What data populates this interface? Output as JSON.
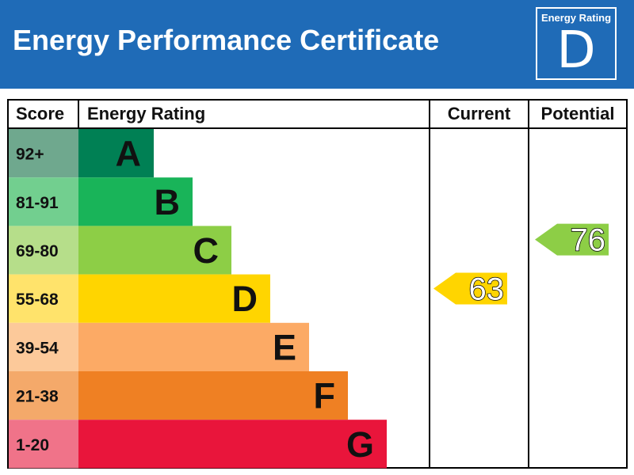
{
  "header": {
    "title": "Energy Performance Certificate",
    "badge_label": "Energy Rating",
    "badge_letter": "D",
    "background_color": "#1f6bb7"
  },
  "chart_data": {
    "type": "bar",
    "columns": {
      "score": "Score",
      "rating": "Energy Rating",
      "current": "Current",
      "potential": "Potential"
    },
    "bands": [
      {
        "letter": "A",
        "range": "92+",
        "min": 92,
        "max": 100,
        "color": "#008054",
        "score_bg": "#6fa88e"
      },
      {
        "letter": "B",
        "range": "81-91",
        "min": 81,
        "max": 91,
        "color": "#19b459",
        "score_bg": "#72cf8f"
      },
      {
        "letter": "C",
        "range": "69-80",
        "min": 69,
        "max": 80,
        "color": "#8dce46",
        "score_bg": "#b6de8a"
      },
      {
        "letter": "D",
        "range": "55-68",
        "min": 55,
        "max": 68,
        "color": "#ffd500",
        "score_bg": "#ffe36b"
      },
      {
        "letter": "E",
        "range": "39-54",
        "min": 39,
        "max": 54,
        "color": "#fcaa65",
        "score_bg": "#fcc99a"
      },
      {
        "letter": "F",
        "range": "21-38",
        "min": 21,
        "max": 38,
        "color": "#ef8023",
        "score_bg": "#f4a96a"
      },
      {
        "letter": "G",
        "range": "1-20",
        "min": 1,
        "max": 20,
        "color": "#e9153b",
        "score_bg": "#f07389"
      }
    ],
    "current": {
      "value": 63,
      "band": "D",
      "color": "#ffd500"
    },
    "potential": {
      "value": 76,
      "band": "C",
      "color": "#8dce46"
    }
  }
}
